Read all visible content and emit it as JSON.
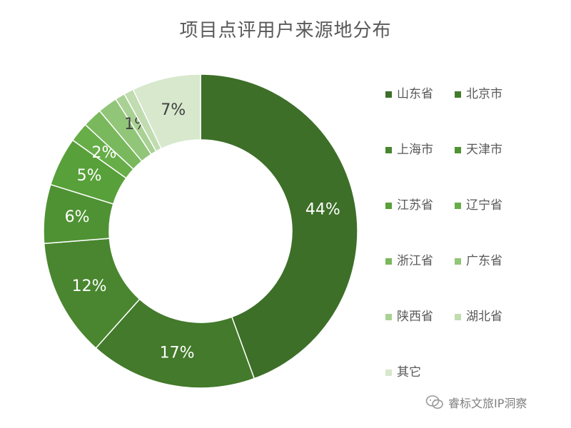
{
  "chart_data": {
    "type": "pie",
    "title": "项目点评用户来源地分布",
    "labels": [
      "山东省",
      "北京市",
      "上海市",
      "天津市",
      "江苏省",
      "辽宁省",
      "浙江省",
      "广东省",
      "陕西省",
      "湖北省",
      "其它"
    ],
    "values": [
      44,
      17,
      12,
      6,
      5,
      2,
      2,
      2,
      1,
      1,
      7
    ],
    "data_labels": [
      "44%",
      "17%",
      "12%",
      "6%",
      "5%",
      "2%",
      "",
      "",
      "1%",
      "",
      "7%"
    ],
    "colors": [
      "#3d6f28",
      "#437a2b",
      "#49862f",
      "#4f9233",
      "#58a03a",
      "#67ad48",
      "#7ab85d",
      "#91c578",
      "#a9d194",
      "#c0dcb0",
      "#d7e8cd"
    ],
    "label_colors": [
      "#ffffff",
      "#ffffff",
      "#ffffff",
      "#ffffff",
      "#ffffff",
      "#ffffff",
      "#404040",
      "#404040",
      "#404040",
      "#404040",
      "#404040"
    ],
    "hole": "donut",
    "legend_position": "right"
  },
  "watermark": {
    "icon": "wechat-icon",
    "text": "睿标文旅IP洞察"
  }
}
